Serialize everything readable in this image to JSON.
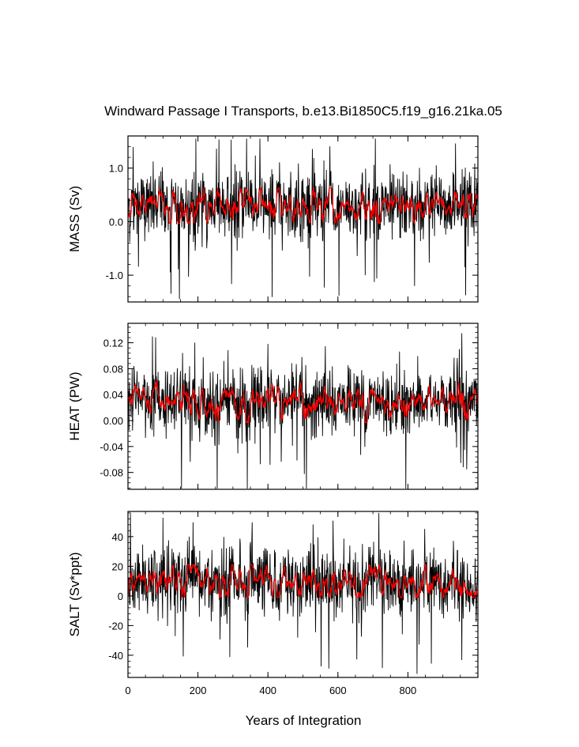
{
  "title": "Windward Passage I Transports, b.e13.Bi1850C5.f19_g16.21ka.05",
  "chart_data": [
    {
      "type": "line",
      "ylabel": "MASS (Sv)",
      "ylim": [
        -1.5,
        1.6
      ],
      "yticks": [
        -1.0,
        0.0,
        1.0
      ],
      "ytick_labels": [
        "-1.0",
        "0.0",
        "1.0"
      ],
      "series": [
        {
          "color": "#000000",
          "mean": 0.3,
          "std": 0.33,
          "min": -1.47,
          "max": 1.55
        },
        {
          "color": "#ff0000",
          "mean": 0.3,
          "range": [
            0.0,
            0.6
          ]
        }
      ]
    },
    {
      "type": "line",
      "ylabel": "HEAT (PW)",
      "ylim": [
        -0.106,
        0.15
      ],
      "yticks": [
        -0.08,
        -0.04,
        0.0,
        0.04,
        0.08,
        0.12
      ],
      "ytick_labels": [
        "-0.08",
        "-0.04",
        "0.00",
        "0.04",
        "0.08",
        "0.12"
      ],
      "series": [
        {
          "color": "#000000",
          "mean": 0.03,
          "std": 0.027,
          "min": -0.105,
          "max": 0.148
        },
        {
          "color": "#ff0000",
          "mean": 0.03,
          "range": [
            0.0,
            0.06
          ]
        }
      ]
    },
    {
      "type": "line",
      "ylabel": "SALT (Sv*ppt)",
      "ylim": [
        -55,
        57
      ],
      "yticks": [
        -40,
        -20,
        0,
        20,
        40
      ],
      "ytick_labels": [
        "-40",
        "-20",
        "0",
        "20",
        "40"
      ],
      "series": [
        {
          "color": "#000000",
          "mean": 10,
          "std": 12,
          "min": -55,
          "max": 56
        },
        {
          "color": "#ff0000",
          "mean": 10,
          "range": [
            0,
            20
          ]
        }
      ]
    }
  ],
  "x": {
    "xlabel": "Years of Integration",
    "xlim": [
      0,
      1000
    ],
    "xticks": [
      0,
      200,
      400,
      600,
      800
    ],
    "xtick_labels": [
      "0",
      "200",
      "400",
      "600",
      "800"
    ]
  },
  "colors": {
    "raw_series": "#000000",
    "smoothed_series": "#ff0000"
  }
}
